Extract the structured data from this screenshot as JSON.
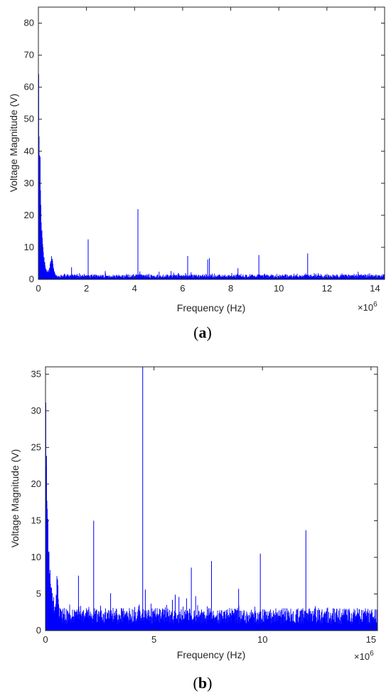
{
  "chart_data": [
    {
      "type": "line",
      "caption_letter": "a",
      "xlabel": "Frequency (Hz)",
      "ylabel": "Voltage Magnitude (V)",
      "x_exponent_base": "×10",
      "x_exponent_power": "6",
      "xlim": [
        0,
        14.4
      ],
      "ylim": [
        0,
        85
      ],
      "xticks": [
        0,
        2,
        4,
        6,
        8,
        10,
        12,
        14
      ],
      "yticks": [
        0,
        10,
        20,
        30,
        40,
        50,
        60,
        70,
        80
      ],
      "color": "#0000ff",
      "noise_floor": 1.1,
      "noise_amplitude": 0.6,
      "low_freq_decay": {
        "peak": 85,
        "tau": 0.09
      },
      "bump": {
        "x": 0.55,
        "height": 5.2,
        "width": 0.09
      },
      "series": [
        {
          "x": [
            1.38,
            2.07,
            2.78,
            4.14,
            4.22,
            5.02,
            5.52,
            5.62,
            5.83,
            6.21,
            6.35,
            7.04,
            7.11,
            8.3,
            9.17,
            11.2,
            13.3
          ],
          "y": [
            3.8,
            12.5,
            2.6,
            21.9,
            2.5,
            2.4,
            2.6,
            2.1,
            2.0,
            7.3,
            2.2,
            6.2,
            6.6,
            3.5,
            7.6,
            8.1,
            2.4
          ]
        }
      ]
    },
    {
      "type": "line",
      "caption_letter": "b",
      "xlabel": "Frequency (Hz)",
      "ylabel": "Voltage Magnitude (V)",
      "x_exponent_base": "×10",
      "x_exponent_power": "6",
      "xlim": [
        0,
        15.3
      ],
      "ylim": [
        0,
        36
      ],
      "xticks": [
        0,
        5,
        10,
        15
      ],
      "yticks": [
        0,
        5,
        10,
        15,
        20,
        25,
        30,
        35
      ],
      "color": "#0000ff",
      "noise_floor": 2.2,
      "noise_amplitude": 0.7,
      "low_freq_decay": {
        "peak": 36,
        "tau": 0.12
      },
      "bump": {
        "x": 0.55,
        "height": 5.3,
        "width": 0.05
      },
      "series": [
        {
          "x": [
            1.52,
            2.22,
            2.54,
            3.0,
            4.48,
            4.6,
            5.85,
            5.98,
            6.15,
            6.5,
            6.72,
            6.92,
            7.65,
            8.9,
            9.9,
            12.0
          ],
          "y": [
            7.5,
            15.0,
            3.4,
            5.1,
            36.0,
            5.6,
            4.2,
            4.9,
            4.6,
            4.4,
            8.6,
            4.7,
            9.5,
            5.7,
            10.5,
            13.7
          ]
        }
      ]
    }
  ]
}
